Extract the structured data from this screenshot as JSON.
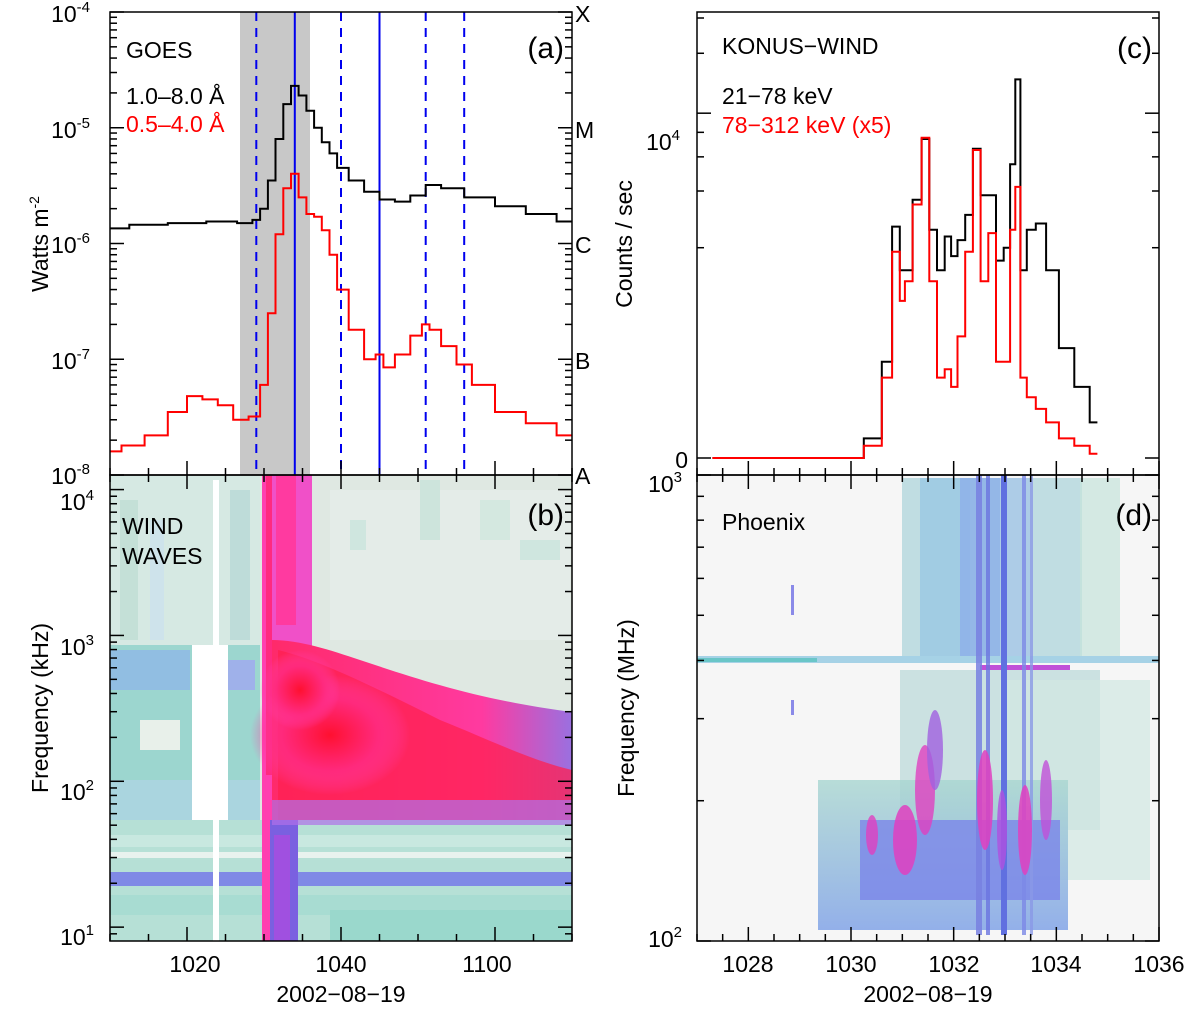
{
  "figure": {
    "panel_a": {
      "instrument": "GOES",
      "tag": "(a)",
      "ylabel_main": "Watts m",
      "ylabel_exp": "-2",
      "channel_black": "1.0–8.0 Å",
      "channel_red": "0.5–4.0 Å",
      "ytick_base": "10",
      "yticks_exp": [
        "-4",
        "-5",
        "-6",
        "-7",
        "-8"
      ],
      "classes": [
        "X",
        "M",
        "C",
        "B",
        "A"
      ]
    },
    "panel_b": {
      "title_line1": "WIND",
      "title_line2": "WAVES",
      "tag": "(b)",
      "ylabel": "Frequency (kHz)",
      "ytick_base": "10",
      "yticks_exp": [
        "4",
        "3",
        "2",
        "1"
      ],
      "xticks": [
        "1020",
        "1040",
        "1100"
      ],
      "xlabel": "2002−08−19"
    },
    "panel_c": {
      "instrument": "KONUS−WIND",
      "tag": "(c)",
      "ylabel": "Counts / sec",
      "channel_black": "21−78 keV",
      "channel_red": "78−312 keV (x5)",
      "ytick_top": "10",
      "ytick_top_exp": "4",
      "ytick_zero": "0"
    },
    "panel_d": {
      "title": "Phoenix",
      "tag": "(d)",
      "ylabel": "Frequency (MHz)",
      "ytick_base": "10",
      "yticks_exp": [
        "3",
        "2"
      ],
      "xticks": [
        "1028",
        "1030",
        "1032",
        "1034",
        "1036"
      ],
      "xlabel": "2002−08−19"
    }
  },
  "colors": {
    "black_curve": "#000000",
    "red_curve": "#ff0000",
    "shade": "#c8c8c8",
    "marker_line": "#0000ee"
  },
  "chart_data": [
    {
      "type": "line",
      "panel": "a",
      "title": "GOES",
      "ylabel": "Watts m-2",
      "yscale": "log",
      "ylim": [
        1e-08,
        0.0001
      ],
      "x_unit": "UT (HHMM)",
      "xlim": [
        "10:10",
        "11:10"
      ],
      "shaded_interval": [
        "10:27",
        "10:36"
      ],
      "dashed_markers": [
        "10:29",
        "10:40",
        "10:51",
        "10:56"
      ],
      "solid_markers": [
        "10:34",
        "10:45"
      ],
      "series": [
        {
          "name": "1.0–8.0 Å",
          "x": [
            "10:10",
            "10:15",
            "10:20",
            "10:25",
            "10:28",
            "10:29",
            "10:30",
            "10:31",
            "10:32",
            "10:33",
            "10:34",
            "10:35",
            "10:36",
            "10:37",
            "10:38",
            "10:39",
            "10:40",
            "10:42",
            "10:44",
            "10:46",
            "10:48",
            "10:50",
            "10:52",
            "10:54",
            "10:58",
            "11:02",
            "11:06",
            "11:10"
          ],
          "values": [
            1.35e-06,
            1.45e-06,
            1.5e-06,
            1.55e-06,
            1.5e-06,
            1.6e-06,
            2e-06,
            3.5e-06,
            8e-06,
            1.6e-05,
            2.3e-05,
            1.9e-05,
            1.4e-05,
            1e-05,
            7.5e-06,
            6e-06,
            4.5e-06,
            3.5e-06,
            2.8e-06,
            2.4e-06,
            2.3e-06,
            2.6e-06,
            3.2e-06,
            3e-06,
            2.5e-06,
            2.1e-06,
            1.8e-06,
            1.55e-06
          ]
        },
        {
          "name": "0.5–4.0 Å",
          "x": [
            "10:10",
            "10:13",
            "10:16",
            "10:19",
            "10:21",
            "10:23",
            "10:25",
            "10:27",
            "10:29",
            "10:30",
            "10:31",
            "10:32",
            "10:33",
            "10:34",
            "10:35",
            "10:36",
            "10:37",
            "10:38",
            "10:39",
            "10:40",
            "10:42",
            "10:44",
            "10:45",
            "10:46",
            "10:48",
            "10:50",
            "10:51",
            "10:52",
            "10:54",
            "10:56",
            "10:58",
            "11:02",
            "11:06",
            "11:10"
          ],
          "values": [
            1.6e-08,
            1.8e-08,
            2.2e-08,
            3.5e-08,
            4.8e-08,
            4.5e-08,
            4e-08,
            3e-08,
            3.2e-08,
            6e-08,
            2.5e-07,
            1.2e-06,
            3e-06,
            4e-06,
            2.5e-06,
            1.8e-06,
            1.7e-06,
            1.3e-06,
            8e-07,
            4e-07,
            1.8e-07,
            1e-07,
            1.1e-07,
            8.5e-08,
            1.1e-07,
            1.6e-07,
            2e-07,
            1.8e-07,
            1.3e-07,
            9e-08,
            6e-08,
            3.5e-08,
            2.8e-08,
            2.2e-08
          ]
        }
      ]
    },
    {
      "type": "heatmap",
      "panel": "b",
      "title": "WIND WAVES",
      "ylabel": "Frequency (kHz)",
      "yscale": "log",
      "ylim": [
        8,
        14000
      ],
      "xlabel": "2002-08-19",
      "xtick_labels": [
        "1020",
        "1040",
        "1100"
      ],
      "features": [
        {
          "name": "type III burst",
          "start": "10:31",
          "freq_range_kHz": [
            8,
            14000
          ]
        },
        {
          "name": "intense drifting emission",
          "start": "10:32",
          "freq_range_kHz": [
            60,
            1000
          ]
        },
        {
          "name": "data gap",
          "interval": [
            "10:22",
            "10:26"
          ],
          "freq_range_kHz": [
            60,
            1000
          ]
        }
      ]
    },
    {
      "type": "line",
      "panel": "c",
      "title": "KONUS-WIND",
      "ylabel": "Counts / sec",
      "x_unit": "UT (HHMM)",
      "xlim": [
        1027,
        1036
      ],
      "ytick_labels": [
        "0",
        "10^4"
      ],
      "series": [
        {
          "name": "21−78 keV",
          "x": [
            1027.3,
            1029.0,
            1030.0,
            1030.5,
            1030.7,
            1030.9,
            1031.0,
            1031.1,
            1031.3,
            1031.45,
            1031.6,
            1031.75,
            1031.9,
            1032.0,
            1032.15,
            1032.3,
            1032.45,
            1032.6,
            1032.75,
            1032.9,
            1033.05,
            1033.15,
            1033.25,
            1033.35,
            1033.5,
            1033.7,
            1033.9,
            1034.2,
            1034.5,
            1034.8
          ],
          "values": [
            0,
            0,
            0,
            50,
            400,
            2600,
            1500,
            1500,
            3600,
            7400,
            2500,
            1500,
            2300,
            1800,
            2200,
            3000,
            6600,
            3800,
            3800,
            1700,
            2000,
            5500,
            14800,
            1500,
            2500,
            2700,
            1500,
            500,
            250,
            100
          ]
        },
        {
          "name": "78−312 keV (x5)",
          "x": [
            1027.3,
            1029.0,
            1030.0,
            1030.5,
            1030.7,
            1030.9,
            1031.0,
            1031.1,
            1031.3,
            1031.45,
            1031.6,
            1031.75,
            1031.9,
            1032.0,
            1032.15,
            1032.3,
            1032.45,
            1032.6,
            1032.75,
            1032.9,
            1033.05,
            1033.15,
            1033.25,
            1033.35,
            1033.5,
            1033.7,
            1033.9,
            1034.2,
            1034.5,
            1034.8
          ],
          "values": [
            0,
            0,
            0,
            30,
            300,
            1900,
            1000,
            1300,
            3400,
            7500,
            1300,
            300,
            350,
            250,
            600,
            1900,
            6500,
            1300,
            2400,
            400,
            400,
            2500,
            4200,
            300,
            200,
            150,
            100,
            50,
            30,
            10
          ]
        }
      ]
    },
    {
      "type": "heatmap",
      "panel": "d",
      "title": "Phoenix",
      "ylabel": "Frequency (MHz)",
      "yscale": "log",
      "ylim": [
        100,
        1000
      ],
      "xlabel": "2002-08-19",
      "xlim": [
        1027,
        1036
      ],
      "xtick_labels": [
        "1028",
        "1030",
        "1032",
        "1034",
        "1036"
      ],
      "features": [
        {
          "name": "broadband emission",
          "interval": [
            1030.2,
            1034.0
          ],
          "freq_range_MHz": [
            100,
            1000
          ]
        },
        {
          "name": "interference line",
          "freq_MHz": 490
        }
      ]
    }
  ]
}
